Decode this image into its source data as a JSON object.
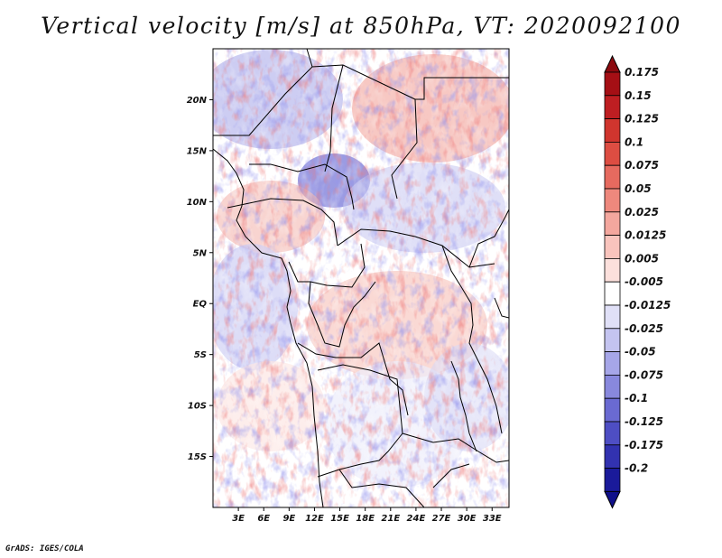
{
  "title": "Vertical velocity [m/s] at 850hPa, VT: 2020092100",
  "footer": "GrADS: IGES/COLA",
  "map": {
    "lon_range": [
      0,
      35
    ],
    "lat_range": [
      -20,
      25
    ],
    "lat_ticks": [
      {
        "value": 20,
        "label": "20N"
      },
      {
        "value": 15,
        "label": "15N"
      },
      {
        "value": 10,
        "label": "10N"
      },
      {
        "value": 5,
        "label": "5N"
      },
      {
        "value": 0,
        "label": "EQ"
      },
      {
        "value": -5,
        "label": "5S"
      },
      {
        "value": -10,
        "label": "10S"
      },
      {
        "value": -15,
        "label": "15S"
      }
    ],
    "lon_ticks": [
      {
        "value": 3,
        "label": "3E"
      },
      {
        "value": 6,
        "label": "6E"
      },
      {
        "value": 9,
        "label": "9E"
      },
      {
        "value": 12,
        "label": "12E"
      },
      {
        "value": 15,
        "label": "15E"
      },
      {
        "value": 18,
        "label": "18E"
      },
      {
        "value": 21,
        "label": "21E"
      },
      {
        "value": 24,
        "label": "24E"
      },
      {
        "value": 27,
        "label": "27E"
      },
      {
        "value": 30,
        "label": "30E"
      },
      {
        "value": 33,
        "label": "33E"
      }
    ]
  },
  "colorbar": {
    "levels": [
      {
        "label": "0.175",
        "color": "#a50f15"
      },
      {
        "label": "0.15",
        "color": "#be1e22"
      },
      {
        "label": "0.125",
        "color": "#d0352e"
      },
      {
        "label": "0.1",
        "color": "#dd4d42"
      },
      {
        "label": "0.075",
        "color": "#e66a5f"
      },
      {
        "label": "0.05",
        "color": "#ee887d"
      },
      {
        "label": "0.025",
        "color": "#f4a79e"
      },
      {
        "label": "0.0125",
        "color": "#f9c4bd"
      },
      {
        "label": "0.005",
        "color": "#fce0dc"
      },
      {
        "label": "-0.005",
        "color": "#ffffff"
      },
      {
        "label": "-0.0125",
        "color": "#e0e0f7"
      },
      {
        "label": "-0.025",
        "color": "#c4c4f0"
      },
      {
        "label": "-0.05",
        "color": "#a6a6e8"
      },
      {
        "label": "-0.075",
        "color": "#8888dd"
      },
      {
        "label": "-0.1",
        "color": "#6a6ad2"
      },
      {
        "label": "-0.125",
        "color": "#4e4ec4"
      },
      {
        "label": "-0.175",
        "color": "#3232b0"
      },
      {
        "label": "-0.2",
        "color": "#1a1a9a"
      }
    ],
    "top_color": "#8c0a0f",
    "bottom_color": "#10108a"
  }
}
